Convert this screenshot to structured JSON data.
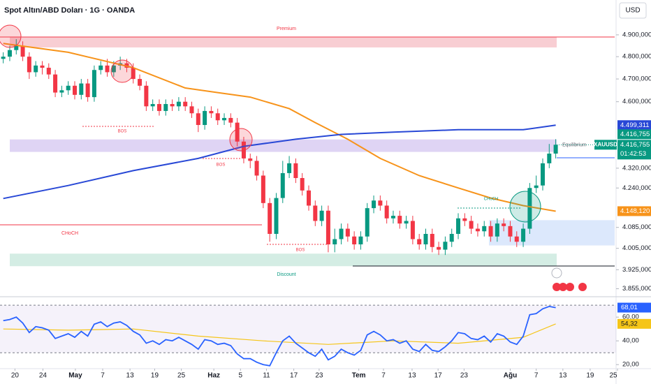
{
  "chart_data": {
    "type": "candlestick",
    "title": "Spot Altın/ABD Doları · 1G · OANDA",
    "currency": "USD",
    "log_scale": true,
    "grid": false,
    "up_color": "#089981",
    "down_color": "#f23645",
    "xlim": [
      -0.5,
      94.5
    ],
    "ylim": [
      3826,
      5064
    ],
    "xticks": [
      {
        "value": 1.8,
        "label": "20"
      },
      {
        "value": 6.1,
        "label": "24"
      },
      {
        "value": 11.1,
        "label": "May"
      },
      {
        "value": 15.3,
        "label": "7"
      },
      {
        "value": 19.5,
        "label": "13"
      },
      {
        "value": 23.3,
        "label": "19"
      },
      {
        "value": 27.4,
        "label": "25"
      },
      {
        "value": 32.4,
        "label": "Haz"
      },
      {
        "value": 36.5,
        "label": "5"
      },
      {
        "value": 40.5,
        "label": "11"
      },
      {
        "value": 44.7,
        "label": "17"
      },
      {
        "value": 48.6,
        "label": "23"
      },
      {
        "value": 54.7,
        "label": "Tem"
      },
      {
        "value": 58.5,
        "label": "7"
      },
      {
        "value": 62.9,
        "label": "13"
      },
      {
        "value": 66.9,
        "label": "17"
      },
      {
        "value": 70.9,
        "label": "23"
      },
      {
        "value": 78,
        "label": "Ağu"
      },
      {
        "value": 82,
        "label": "7"
      },
      {
        "value": 86.1,
        "label": "13"
      },
      {
        "value": 90.3,
        "label": "19"
      },
      {
        "value": 94.5,
        "label": "25"
      }
    ],
    "yticks": [
      {
        "value": 4900,
        "label": "4.900,000"
      },
      {
        "value": 4800,
        "label": "4.800,000"
      },
      {
        "value": 4700,
        "label": "4.700,000"
      },
      {
        "value": 4600,
        "label": "4.600,000"
      },
      {
        "value": 4320,
        "label": "4.320,000"
      },
      {
        "value": 4240,
        "label": "4.240,000"
      },
      {
        "value": 4085,
        "label": "4.085,000"
      },
      {
        "value": 4005,
        "label": "4.005,000"
      },
      {
        "value": 3925,
        "label": "3.925,000"
      },
      {
        "value": 3855,
        "label": "3.855,000"
      }
    ],
    "open": [
      4790,
      4800,
      4830,
      4850,
      4800,
      4730,
      4760,
      4750,
      4720,
      4640,
      4650,
      4670,
      4630,
      4680,
      4620,
      4740,
      4760,
      4730,
      4760,
      4770,
      4750,
      4700,
      4670,
      4580,
      4590,
      4560,
      4590,
      4580,
      4600,
      4580,
      4550,
      4500,
      4560,
      4550,
      4520,
      4530,
      4510,
      4430,
      4360,
      4350,
      4290,
      4180,
      4060,
      4200,
      4300,
      4340,
      4280,
      4230,
      4170,
      4110,
      4150,
      4020,
      4040,
      4080,
      4050,
      4020,
      4050,
      4160,
      4190,
      4170,
      4120,
      4130,
      4100,
      4110,
      4040,
      4020,
      4060,
      4010,
      4000,
      4030,
      4060,
      4120,
      4110,
      4080,
      4070,
      4090,
      4050,
      4100,
      4090,
      4050,
      4030,
      4080,
      4240,
      4250,
      4340,
      4380
    ],
    "high": [
      4820,
      4850,
      4880,
      4870,
      4820,
      4780,
      4780,
      4770,
      4740,
      4670,
      4690,
      4690,
      4700,
      4700,
      4760,
      4780,
      4790,
      4780,
      4800,
      4790,
      4770,
      4720,
      4690,
      4610,
      4610,
      4610,
      4610,
      4620,
      4620,
      4600,
      4570,
      4580,
      4580,
      4570,
      4550,
      4550,
      4530,
      4450,
      4380,
      4370,
      4310,
      4200,
      4220,
      4350,
      4370,
      4360,
      4300,
      4250,
      4190,
      4170,
      4170,
      4080,
      4100,
      4100,
      4070,
      4070,
      4180,
      4210,
      4210,
      4190,
      4150,
      4150,
      4130,
      4130,
      4060,
      4080,
      4080,
      4030,
      4050,
      4080,
      4140,
      4140,
      4130,
      4100,
      4110,
      4110,
      4120,
      4120,
      4110,
      4070,
      4100,
      4260,
      4290,
      4360,
      4420,
      4440
    ],
    "low": [
      4770,
      4780,
      4810,
      4780,
      4700,
      4710,
      4720,
      4700,
      4620,
      4620,
      4630,
      4610,
      4610,
      4600,
      4600,
      4720,
      4710,
      4710,
      4740,
      4730,
      4680,
      4650,
      4560,
      4560,
      4540,
      4540,
      4560,
      4560,
      4560,
      4530,
      4470,
      4480,
      4530,
      4500,
      4500,
      4490,
      4410,
      4340,
      4320,
      4270,
      4160,
      4030,
      4040,
      4180,
      4280,
      4260,
      4210,
      4150,
      4090,
      4090,
      3990,
      3990,
      4020,
      4030,
      4000,
      4000,
      4030,
      4140,
      4150,
      4100,
      4100,
      4080,
      4080,
      4020,
      4000,
      4000,
      3990,
      3980,
      3980,
      4010,
      4040,
      4090,
      4060,
      4050,
      4050,
      4030,
      4030,
      4070,
      4030,
      4010,
      4010,
      4060,
      4220,
      4230,
      4320,
      4360
    ],
    "close": [
      4800,
      4830,
      4850,
      4800,
      4730,
      4760,
      4750,
      4720,
      4640,
      4650,
      4670,
      4630,
      4680,
      4620,
      4740,
      4760,
      4730,
      4760,
      4770,
      4750,
      4700,
      4670,
      4580,
      4590,
      4560,
      4590,
      4580,
      4600,
      4580,
      4550,
      4500,
      4560,
      4550,
      4520,
      4530,
      4510,
      4430,
      4360,
      4350,
      4290,
      4180,
      4060,
      4200,
      4300,
      4340,
      4280,
      4230,
      4170,
      4110,
      4150,
      4020,
      4040,
      4080,
      4050,
      4020,
      4050,
      4160,
      4190,
      4170,
      4120,
      4130,
      4100,
      4110,
      4040,
      4020,
      4060,
      4010,
      4000,
      4030,
      4060,
      4120,
      4110,
      4080,
      4070,
      4090,
      4050,
      4100,
      4090,
      4050,
      4030,
      4080,
      4240,
      4250,
      4340,
      4380,
      4416.755
    ],
    "series": [
      {
        "color": "#f7931a",
        "x": [
          0,
          10,
          20,
          28,
          33,
          38,
          44,
          48,
          53,
          58,
          64,
          70,
          75,
          80,
          85
        ],
        "values": [
          4860,
          4820,
          4750,
          4660,
          4640,
          4620,
          4570,
          4510,
          4440,
          4360,
          4290,
          4240,
          4200,
          4170,
          4148.12
        ]
      },
      {
        "color": "#2848d6",
        "x": [
          0,
          10,
          20,
          30,
          37,
          45,
          52,
          60,
          70,
          80,
          85
        ],
        "values": [
          4198,
          4250,
          4310,
          4360,
          4410,
          4440,
          4460,
          4470,
          4480,
          4480,
          4499.311
        ]
      }
    ],
    "zones": [
      {
        "label": "Premium",
        "top": 4842,
        "bottom": 4890,
        "color": "#f7c6cb"
      },
      {
        "label": "Equilibrium",
        "top": 4439,
        "bottom": 4387,
        "color": "#d9cdf2"
      },
      {
        "label": "Discount",
        "top": 3985,
        "bottom": 3938,
        "color": "#cdeadf"
      },
      {
        "top": 4113,
        "bottom": 4016,
        "color": "#d6e4fb"
      }
    ],
    "annotations": [
      "CHoCH",
      "BOS",
      "BOS",
      "BOS",
      "CHoCH"
    ],
    "price_labels": [
      {
        "value": 4499.311,
        "label": "4.499,311",
        "color": "#2848d6"
      },
      {
        "value": 4416.755,
        "label": "4.416,755",
        "color": "#089981"
      },
      {
        "value": 4148.12,
        "label": "4.148,120",
        "color": "#f7931a"
      }
    ],
    "last_price": {
      "value": 4416.755,
      "label": "4.416,755",
      "symbol": "XAUUSD",
      "countdown": "01:42:53",
      "color": "#089981"
    },
    "rsi": {
      "color": "#2962ff",
      "ylim": [
        16.6,
        75.4
      ],
      "yticks": [
        {
          "value": 60,
          "label": "60,00"
        },
        {
          "value": 40,
          "label": "40,00"
        },
        {
          "value": 20,
          "label": "20,00"
        }
      ],
      "band": [
        30,
        70
      ],
      "values": [
        57,
        58,
        60,
        55,
        47,
        52,
        51,
        49,
        42,
        44,
        46,
        43,
        48,
        44,
        54,
        56,
        52,
        55,
        56,
        53,
        48,
        45,
        38,
        40,
        37,
        41,
        40,
        43,
        40,
        37,
        33,
        41,
        40,
        37,
        38,
        36,
        29,
        25,
        25,
        22,
        20,
        19,
        30,
        40,
        44,
        38,
        34,
        30,
        27,
        33,
        24,
        27,
        33,
        30,
        28,
        32,
        45,
        48,
        45,
        40,
        41,
        38,
        40,
        33,
        31,
        37,
        32,
        31,
        35,
        40,
        47,
        46,
        42,
        41,
        44,
        39,
        46,
        44,
        39,
        37,
        44,
        62,
        63,
        67,
        69,
        68.01
      ],
      "last_label": "68,01",
      "ma": {
        "color": "#f5c518",
        "x": [
          0,
          10,
          20,
          30,
          40,
          50,
          60,
          70,
          80,
          85
        ],
        "values": [
          50,
          49,
          50,
          44,
          40,
          37,
          40,
          38,
          43,
          54.32
        ],
        "last_label": "54,32"
      }
    }
  }
}
